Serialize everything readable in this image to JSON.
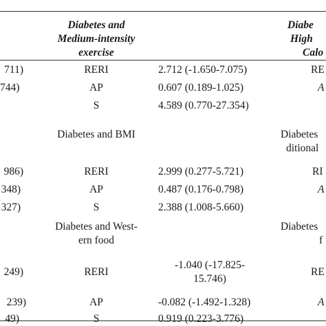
{
  "header": {
    "col2": [
      "Diabetes and",
      "Medium-intensity",
      "exercise"
    ],
    "col4": [
      "Diabe",
      "High",
      "Calo"
    ]
  },
  "groups": [
    {
      "title": [
        "Diabetes and BMI"
      ],
      "right_title": [
        "Diabetes",
        "ditional"
      ]
    },
    {
      "title": [
        "Diabetes and West-",
        "ern food"
      ],
      "right_title": [
        "Diabetes",
        "f"
      ]
    }
  ],
  "rows": [
    {
      "left": "711)",
      "measure": "RERI",
      "value": "2.712 (-1.650-7.075)",
      "right": "RE"
    },
    {
      "left": "744)",
      "measure": "AP",
      "value": "0.607 (0.189-1.025)",
      "right": "A"
    },
    {
      "left": "",
      "measure": "S",
      "value": "4.589 (0.770-27.354)",
      "right": ""
    },
    {
      "left": "986)",
      "measure": "RERI",
      "value": "2.999 (0.277-5.721)",
      "right": "RI"
    },
    {
      "left": "348)",
      "measure": "AP",
      "value": "0.487 (0.176-0.798)",
      "right": "A"
    },
    {
      "left": "327)",
      "measure": "S",
      "value": "2.388 (1.008-5.660)",
      "right": ""
    },
    {
      "left": "249)",
      "measure": "RERI",
      "value": "-1.040 (-17.825-",
      "value2": "15.746)",
      "right": "RE"
    },
    {
      "left": "239)",
      "measure": "AP",
      "value": "-0.082 (-1.492-1.328)",
      "right": "A"
    },
    {
      "left": "49)",
      "measure": "S",
      "value": "0.919 (0.223-3.776)",
      "right": ""
    }
  ]
}
